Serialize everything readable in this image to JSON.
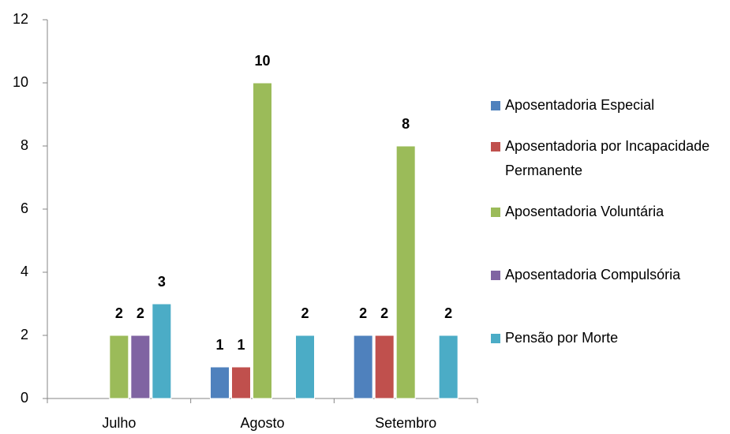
{
  "chart_data": {
    "type": "bar",
    "categories": [
      "Julho",
      "Agosto",
      "Setembro"
    ],
    "series": [
      {
        "name": "Aposentadoria Especial",
        "color": "#4f81bd",
        "values": [
          null,
          1,
          2
        ]
      },
      {
        "name": "Aposentadoria por Incapacidade Permanente",
        "color": "#c0504d",
        "values": [
          null,
          1,
          2
        ]
      },
      {
        "name": "Aposentadoria Voluntária",
        "color": "#9bbb59",
        "values": [
          2,
          10,
          8
        ]
      },
      {
        "name": "Aposentadoria Compulsória",
        "color": "#8064a2",
        "values": [
          2,
          null,
          null
        ]
      },
      {
        "name": "Pensão por Morte",
        "color": "#4bacc6",
        "values": [
          3,
          2,
          2
        ]
      }
    ],
    "ylim": [
      0,
      12
    ],
    "yticks": [
      0,
      2,
      4,
      6,
      8,
      10,
      12
    ],
    "grid": false,
    "legend": "right"
  }
}
